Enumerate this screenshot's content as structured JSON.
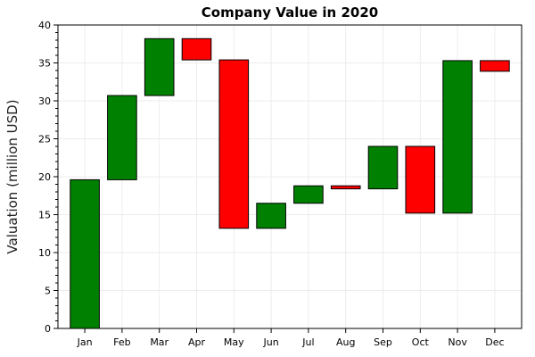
{
  "chart_data": {
    "type": "bar",
    "subtype": "waterfall",
    "title": "Company Value in 2020",
    "xlabel": "",
    "ylabel": "Valuation (million USD)",
    "categories": [
      "Jan",
      "Feb",
      "Mar",
      "Apr",
      "May",
      "Jun",
      "Jul",
      "Aug",
      "Sep",
      "Oct",
      "Nov",
      "Dec"
    ],
    "bars": [
      {
        "category": "Jan",
        "start": 0,
        "end": 19.6
      },
      {
        "category": "Feb",
        "start": 19.6,
        "end": 30.7
      },
      {
        "category": "Mar",
        "start": 30.7,
        "end": 38.2
      },
      {
        "category": "Apr",
        "start": 38.2,
        "end": 35.4
      },
      {
        "category": "May",
        "start": 35.4,
        "end": 13.2
      },
      {
        "category": "Jun",
        "start": 13.2,
        "end": 16.5
      },
      {
        "category": "Jul",
        "start": 16.5,
        "end": 18.8
      },
      {
        "category": "Aug",
        "start": 18.8,
        "end": 18.4
      },
      {
        "category": "Sep",
        "start": 18.4,
        "end": 24.0
      },
      {
        "category": "Oct",
        "start": 24.0,
        "end": 15.2
      },
      {
        "category": "Nov",
        "start": 15.2,
        "end": 35.3
      },
      {
        "category": "Dec",
        "start": 35.3,
        "end": 33.9
      }
    ],
    "ylim": [
      0,
      40
    ],
    "yticks": [
      0,
      5,
      10,
      15,
      20,
      25,
      30,
      35,
      40
    ],
    "grid": true,
    "colors": {
      "increase": "#008000",
      "decrease": "#ff0000",
      "bar_edge": "#000000"
    }
  }
}
